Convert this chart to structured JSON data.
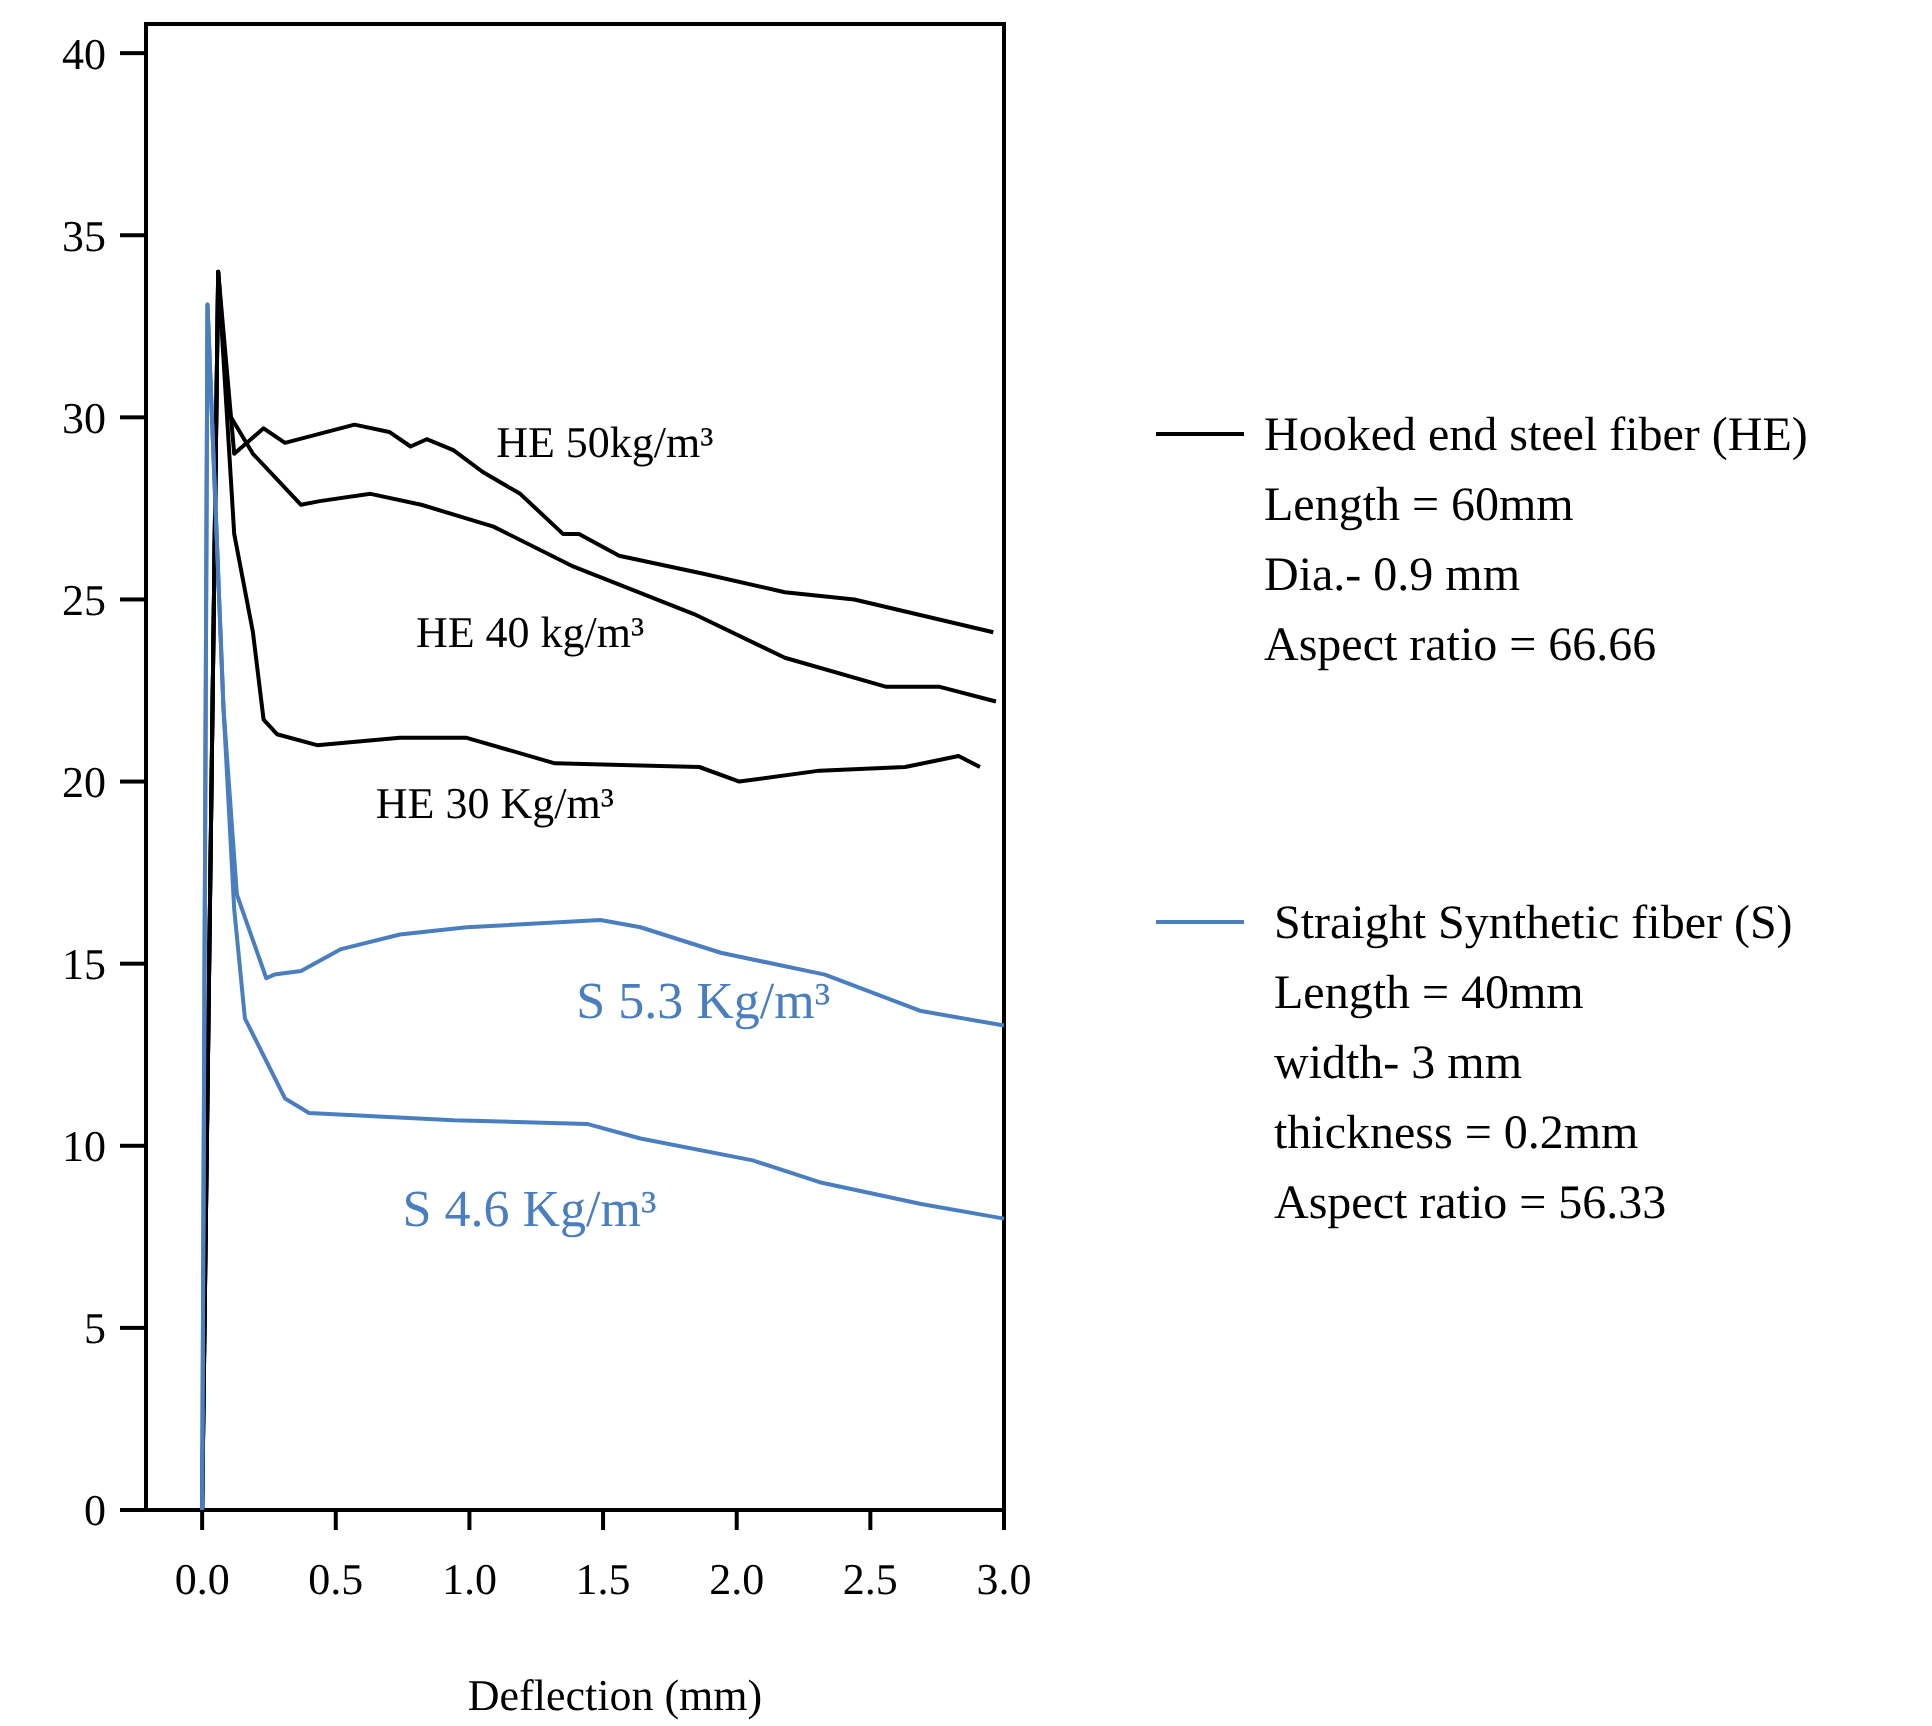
{
  "chart_data": {
    "type": "line",
    "xlabel": "Deflection (mm)",
    "xlim": [
      -0.21,
      3.0
    ],
    "ylim": [
      0,
      40.8
    ],
    "xticks": [
      {
        "value": 0,
        "label": "0.0"
      },
      0.5,
      {
        "value": 1,
        "label": "1.0"
      },
      1.5,
      {
        "value": 2,
        "label": "2.0"
      },
      2.5,
      {
        "value": 3,
        "label": "3.0"
      }
    ],
    "yticks": [
      0,
      5,
      10,
      15,
      20,
      25,
      30,
      35,
      40
    ],
    "grid": false,
    "legend": "right",
    "marker": "none",
    "line_style": "solid",
    "annotations": [
      "Hooked end steel fiber (HE)\nLength = 60mm\nDia.- 0.9 mm\nAspect ratio = 66.66",
      "Straight Synthetic fiber (S)\nLength = 40mm\nwidth- 3 mm\nthickness = 0.2mm\nAspect ratio = 56.33"
    ],
    "series": [
      {
        "name": "HE 50kg/m³",
        "color": "#000000",
        "x": [
          0,
          0.06,
          0.12,
          0.23,
          0.31,
          0.57,
          0.7,
          0.78,
          0.84,
          0.94,
          1.05,
          1.19,
          1.35,
          1.41,
          1.56,
          1.88,
          2.18,
          2.44,
          2.96
        ],
        "values": [
          0,
          34.0,
          29.0,
          29.7,
          29.3,
          29.8,
          29.6,
          29.2,
          29.4,
          29.1,
          28.5,
          27.9,
          26.8,
          26.8,
          26.2,
          25.7,
          25.2,
          25.0,
          24.1
        ]
      },
      {
        "name": "HE 40 kg/m³",
        "color": "#000000",
        "x": [
          0,
          0.06,
          0.1,
          0.19,
          0.37,
          0.44,
          0.63,
          0.82,
          1.09,
          1.39,
          1.84,
          2.18,
          2.56,
          2.76,
          2.97
        ],
        "values": [
          0,
          34.0,
          30.1,
          29.0,
          27.6,
          27.7,
          27.9,
          27.6,
          27.0,
          25.9,
          24.6,
          23.4,
          22.6,
          22.6,
          22.2
        ]
      },
      {
        "name": "HE 30 Kg/m³",
        "color": "#000000",
        "x": [
          0,
          0.06,
          0.12,
          0.19,
          0.23,
          0.28,
          0.43,
          0.74,
          0.99,
          1.32,
          1.86,
          2.01,
          2.31,
          2.63,
          2.83,
          2.91
        ],
        "values": [
          0,
          34.0,
          26.8,
          24.1,
          21.7,
          21.3,
          21.0,
          21.2,
          21.2,
          20.5,
          20.4,
          20.0,
          20.3,
          20.4,
          20.7,
          20.4
        ]
      },
      {
        "name": "S 5.3 Kg/m³",
        "color": "#4a7ebf",
        "x": [
          0,
          0.02,
          0.08,
          0.13,
          0.24,
          0.27,
          0.37,
          0.52,
          0.74,
          0.99,
          1.49,
          1.64,
          1.94,
          2.33,
          2.69,
          3.0
        ],
        "values": [
          0,
          33.1,
          22,
          16.9,
          14.6,
          14.7,
          14.8,
          15.4,
          15.8,
          16.0,
          16.2,
          16.0,
          15.3,
          14.7,
          13.7,
          13.3
        ]
      },
      {
        "name": "S 4.6 Kg/m³",
        "color": "#4a7ebf",
        "x": [
          0,
          0.02,
          0.08,
          0.12,
          0.16,
          0.31,
          0.4,
          0.94,
          1.44,
          1.64,
          2.06,
          2.31,
          2.69,
          3.0
        ],
        "values": [
          0,
          33.1,
          22,
          16.5,
          13.5,
          11.3,
          10.9,
          10.7,
          10.6,
          10.2,
          9.6,
          9.0,
          8.4,
          8.0
        ]
      }
    ]
  }
}
